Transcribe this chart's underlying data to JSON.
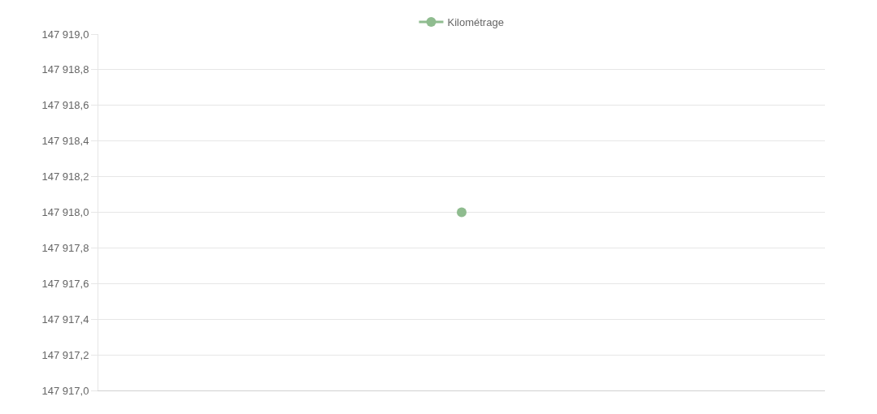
{
  "chart_data": {
    "type": "line",
    "categories": [
      null
    ],
    "series": [
      {
        "name": "Kilométrage",
        "color": "#8fbc8f",
        "values": [
          147918.0
        ]
      }
    ],
    "ylim": [
      147917.0,
      147919.0
    ],
    "yticks": [
      {
        "value": 147917.0,
        "label": "147 917,0"
      },
      {
        "value": 147917.2,
        "label": "147 917,2"
      },
      {
        "value": 147917.4,
        "label": "147 917,4"
      },
      {
        "value": 147917.6,
        "label": "147 917,6"
      },
      {
        "value": 147917.8,
        "label": "147 917,8"
      },
      {
        "value": 147918.0,
        "label": "147 918,0"
      },
      {
        "value": 147918.2,
        "label": "147 918,2"
      },
      {
        "value": 147918.4,
        "label": "147 918,4"
      },
      {
        "value": 147918.6,
        "label": "147 918,6"
      },
      {
        "value": 147918.8,
        "label": "147 918,8"
      },
      {
        "value": 147919.0,
        "label": "147 919,0"
      }
    ],
    "grid": "y",
    "legend": "top",
    "marker": "circle"
  }
}
